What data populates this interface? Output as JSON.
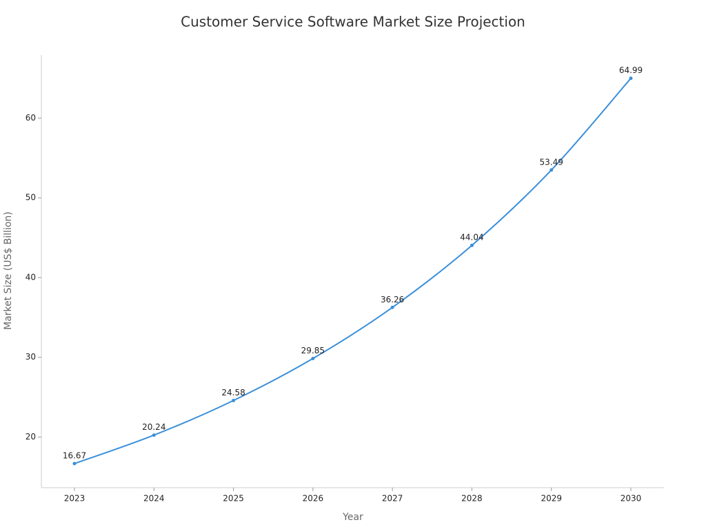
{
  "chart_data": {
    "type": "line",
    "title": "Customer Service Software Market Size Projection",
    "x_label": "Year",
    "y_label": "Market Size (US$ Billion)",
    "categories": [
      "2023",
      "2024",
      "2025",
      "2026",
      "2027",
      "2028",
      "2029",
      "2030"
    ],
    "series": [
      {
        "name": "Market Size",
        "color": "#3a8fd9",
        "values": [
          16.67,
          20.24,
          24.58,
          29.85,
          36.26,
          44.04,
          53.49,
          64.99
        ]
      }
    ],
    "ylim": [
      13.65,
      67.9
    ],
    "yticks": [
      20,
      30,
      40,
      50,
      60
    ],
    "grid": false
  }
}
